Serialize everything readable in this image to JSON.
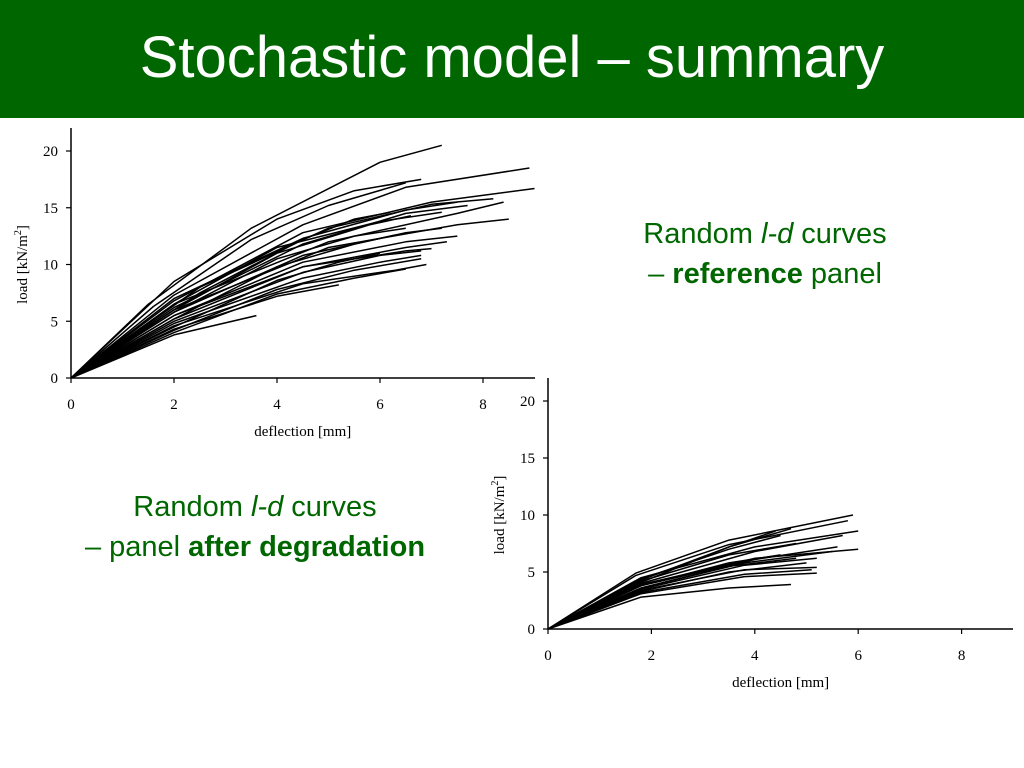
{
  "slide": {
    "title": "Stochastic model – summary"
  },
  "captions": {
    "reference": {
      "line1_prefix": "Random ",
      "line1_italic": "l-d",
      "line1_suffix": " curves",
      "line2_prefix": "– ",
      "line2_bold": "reference",
      "line2_suffix": " panel"
    },
    "degraded": {
      "line1_prefix": "Random ",
      "line1_italic": "l-d",
      "line1_suffix": " curves",
      "line2_prefix": "– panel ",
      "line2_bold": "after degradation"
    }
  },
  "colors": {
    "title_bar": "#006600",
    "title_text": "#ffffff",
    "caption_text": "#006600",
    "curve": "#000000"
  },
  "chart_data": [
    {
      "type": "line",
      "title": "",
      "xlabel": "deflection [mm]",
      "ylabel": "load [kN/m²]",
      "ylabel_parts": {
        "main": "load [kN/m",
        "sup": "2",
        "end": "]"
      },
      "xlim": [
        0,
        9
      ],
      "ylim": [
        0,
        22
      ],
      "xticks": [
        0,
        2,
        4,
        6,
        8
      ],
      "yticks": [
        0,
        5,
        10,
        15,
        20
      ],
      "grid": false,
      "legend": "none",
      "series": [
        {
          "x": [
            0,
            1.5,
            3.5,
            6,
            7.2
          ],
          "y": [
            0,
            6.5,
            13.2,
            19,
            20.5
          ]
        },
        {
          "x": [
            0,
            2,
            4,
            5.5,
            6.8
          ],
          "y": [
            0,
            8.5,
            14,
            16.5,
            17.5
          ]
        },
        {
          "x": [
            0,
            1.6,
            3.5,
            5,
            6.5
          ],
          "y": [
            0,
            6.3,
            12.2,
            15.2,
            17.2
          ]
        },
        {
          "x": [
            0,
            2,
            4.5,
            6.5,
            8.9
          ],
          "y": [
            0,
            7.3,
            13.5,
            16.8,
            18.5
          ]
        },
        {
          "x": [
            0,
            2,
            4.5,
            7,
            9
          ],
          "y": [
            0,
            6.8,
            12.8,
            15.5,
            16.7
          ]
        },
        {
          "x": [
            0,
            2,
            4.5,
            6.5,
            7.5
          ],
          "y": [
            0,
            7,
            12.3,
            14.8,
            15.5
          ]
        },
        {
          "x": [
            0,
            2,
            5,
            7.5,
            8.4
          ],
          "y": [
            0,
            6.5,
            12,
            14.5,
            15.5
          ]
        },
        {
          "x": [
            0,
            2,
            5,
            7.5,
            8.5
          ],
          "y": [
            0,
            6,
            11.5,
            13.5,
            14
          ]
        },
        {
          "x": [
            0,
            2,
            4.5,
            6.5,
            7.7
          ],
          "y": [
            0,
            6.2,
            11.8,
            14.5,
            15.2
          ]
        },
        {
          "x": [
            0,
            2,
            4,
            6,
            7.2
          ],
          "y": [
            0,
            6.5,
            11.5,
            13.8,
            14.6
          ]
        },
        {
          "x": [
            0,
            2,
            4.5,
            6.5,
            7.2
          ],
          "y": [
            0,
            5.8,
            10.8,
            12.8,
            13.2
          ]
        },
        {
          "x": [
            0,
            2,
            4.5,
            6.5,
            7.5
          ],
          "y": [
            0,
            5.5,
            10.2,
            12,
            12.5
          ]
        },
        {
          "x": [
            0,
            2,
            4.5,
            6.5,
            7.3
          ],
          "y": [
            0,
            5.2,
            9.8,
            11.5,
            12
          ]
        },
        {
          "x": [
            0,
            2,
            4.5,
            6.5,
            7
          ],
          "y": [
            0,
            5.5,
            9.8,
            11.2,
            11.4
          ]
        },
        {
          "x": [
            0,
            2,
            4.5,
            6,
            6.8
          ],
          "y": [
            0,
            5,
            9.3,
            10.8,
            11.2
          ]
        },
        {
          "x": [
            0,
            2,
            4.5,
            6,
            6.8
          ],
          "y": [
            0,
            4.8,
            8.8,
            10.2,
            10.8
          ]
        },
        {
          "x": [
            0,
            2,
            4.5,
            6.3,
            6.9
          ],
          "y": [
            0,
            4.6,
            8.3,
            9.5,
            10
          ]
        },
        {
          "x": [
            0,
            2,
            3.6
          ],
          "y": [
            0,
            3.8,
            5.5
          ]
        },
        {
          "x": [
            0,
            2,
            4,
            5.5,
            6.5
          ],
          "y": [
            0,
            5.8,
            10.5,
            12.5,
            13.2
          ]
        },
        {
          "x": [
            0,
            2,
            4,
            5.8,
            6.6
          ],
          "y": [
            0,
            6,
            11,
            13.5,
            14.3
          ]
        },
        {
          "x": [
            0,
            2,
            4,
            5.5,
            6.3
          ],
          "y": [
            0,
            5.2,
            9.8,
            11.8,
            12.6
          ]
        },
        {
          "x": [
            0,
            2,
            4,
            5.2,
            6
          ],
          "y": [
            0,
            4.5,
            8.6,
            10.2,
            11
          ]
        },
        {
          "x": [
            0,
            2,
            4,
            5.5,
            6.8
          ],
          "y": [
            0,
            4.2,
            7.8,
            9.5,
            10.5
          ]
        },
        {
          "x": [
            0,
            2,
            4,
            5.5,
            6.5
          ],
          "y": [
            0,
            4,
            7.4,
            8.8,
            9.6
          ]
        },
        {
          "x": [
            0,
            2.5,
            4.5,
            5.5,
            6.2
          ],
          "y": [
            0,
            7.5,
            12.2,
            14,
            14.6
          ]
        },
        {
          "x": [
            0,
            2.5,
            5,
            7,
            8.2
          ],
          "y": [
            0,
            8,
            13.2,
            15.3,
            15.8
          ]
        },
        {
          "x": [
            0,
            2,
            4,
            5.2
          ],
          "y": [
            0,
            4.3,
            7.2,
            8.2
          ]
        }
      ]
    },
    {
      "type": "line",
      "title": "",
      "xlabel": "deflection [mm]",
      "ylabel": "load [kN/m²]",
      "ylabel_parts": {
        "main": "load [kN/m",
        "sup": "2",
        "end": "]"
      },
      "xlim": [
        0,
        9
      ],
      "ylim": [
        0,
        22
      ],
      "xticks": [
        0,
        2,
        4,
        6,
        8
      ],
      "yticks": [
        0,
        5,
        10,
        15,
        20
      ],
      "grid": false,
      "legend": "none",
      "series": [
        {
          "x": [
            0,
            1.7,
            3.5,
            5.9
          ],
          "y": [
            0,
            4.9,
            7.8,
            10
          ]
        },
        {
          "x": [
            0,
            1.7,
            3.5,
            5.8
          ],
          "y": [
            0,
            4.7,
            7.4,
            9.5
          ]
        },
        {
          "x": [
            0,
            1.8,
            4,
            6
          ],
          "y": [
            0,
            4.5,
            7.2,
            8.6
          ]
        },
        {
          "x": [
            0,
            1.8,
            3.5,
            4.7
          ],
          "y": [
            0,
            4.3,
            7.2,
            8.8
          ]
        },
        {
          "x": [
            0,
            1.8,
            3.5,
            4.4
          ],
          "y": [
            0,
            4.1,
            7.2,
            8.6
          ]
        },
        {
          "x": [
            0,
            1.8,
            4,
            5.7
          ],
          "y": [
            0,
            4,
            6.8,
            8.2
          ]
        },
        {
          "x": [
            0,
            1.8,
            4,
            6
          ],
          "y": [
            0,
            3.9,
            6.2,
            7
          ]
        },
        {
          "x": [
            0,
            1.8,
            4,
            5.6
          ],
          "y": [
            0,
            3.8,
            6.1,
            7.2
          ]
        },
        {
          "x": [
            0,
            1.8,
            3.8,
            5.5
          ],
          "y": [
            0,
            3.6,
            5.8,
            6.8
          ]
        },
        {
          "x": [
            0,
            1.8,
            3.8,
            5.2
          ],
          "y": [
            0,
            3.5,
            5.6,
            6.2
          ]
        },
        {
          "x": [
            0,
            1.8,
            3.8,
            5.2
          ],
          "y": [
            0,
            3.4,
            5.2,
            5.4
          ]
        },
        {
          "x": [
            0,
            1.8,
            3.8,
            5.1
          ],
          "y": [
            0,
            3.2,
            4.8,
            5.2
          ]
        },
        {
          "x": [
            0,
            1.8,
            3.8,
            5.2
          ],
          "y": [
            0,
            3.1,
            4.6,
            4.9
          ]
        },
        {
          "x": [
            0,
            1.8,
            3.5,
            4.7
          ],
          "y": [
            0,
            2.8,
            3.6,
            3.9
          ]
        },
        {
          "x": [
            0,
            1.8,
            3.5,
            4.5
          ],
          "y": [
            0,
            4.4,
            7,
            8.2
          ]
        },
        {
          "x": [
            0,
            1.8,
            3.5,
            4.8
          ],
          "y": [
            0,
            4.2,
            6.5,
            7.5
          ]
        },
        {
          "x": [
            0,
            1.8,
            3.5,
            4.5
          ],
          "y": [
            0,
            3.8,
            5.8,
            6.5
          ]
        },
        {
          "x": [
            0,
            1.8,
            3.5,
            4.8
          ],
          "y": [
            0,
            3.6,
            5.5,
            6.2
          ]
        },
        {
          "x": [
            0,
            1.8,
            3.5,
            5
          ],
          "y": [
            0,
            3.3,
            5,
            5.8
          ]
        }
      ]
    }
  ]
}
